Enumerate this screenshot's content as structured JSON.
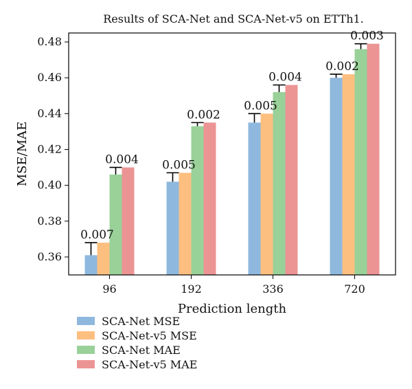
{
  "chart_data": {
    "type": "bar",
    "title": "Results of SCA-Net and SCA-Net-v5 on ETTh1.",
    "xlabel": "Prediction length",
    "ylabel": "MSE/MAE",
    "categories": [
      "96",
      "192",
      "336",
      "720"
    ],
    "ylim": [
      0.35,
      0.485
    ],
    "yticks": [
      0.36,
      0.38,
      0.4,
      0.42,
      0.44,
      0.46,
      0.48
    ],
    "ytick_labels": [
      "0.36",
      "0.38",
      "0.40",
      "0.42",
      "0.44",
      "0.46",
      "0.48"
    ],
    "grid": false,
    "legend_position": "bottom-left",
    "series": [
      {
        "name": "SCA-Net MSE",
        "color": "#8FB8DE",
        "values": [
          0.361,
          0.402,
          0.435,
          0.46
        ]
      },
      {
        "name": "SCA-Net-v5 MSE",
        "color": "#FDBF80",
        "values": [
          0.368,
          0.407,
          0.44,
          0.462
        ]
      },
      {
        "name": "SCA-Net MAE",
        "color": "#99D199",
        "values": [
          0.406,
          0.433,
          0.452,
          0.476
        ]
      },
      {
        "name": "SCA-Net-v5 MAE",
        "color": "#EC9494",
        "values": [
          0.41,
          0.435,
          0.456,
          0.479
        ]
      }
    ],
    "annotations": [
      {
        "category": "96",
        "series_pair": [
          0,
          1
        ],
        "label": "0.007"
      },
      {
        "category": "96",
        "series_pair": [
          2,
          3
        ],
        "label": "0.004"
      },
      {
        "category": "192",
        "series_pair": [
          0,
          1
        ],
        "label": "0.005"
      },
      {
        "category": "192",
        "series_pair": [
          2,
          3
        ],
        "label": "0.002"
      },
      {
        "category": "336",
        "series_pair": [
          0,
          1
        ],
        "label": "0.005"
      },
      {
        "category": "336",
        "series_pair": [
          2,
          3
        ],
        "label": "0.004"
      },
      {
        "category": "720",
        "series_pair": [
          0,
          1
        ],
        "label": "0.002"
      },
      {
        "category": "720",
        "series_pair": [
          2,
          3
        ],
        "label": "0.003"
      }
    ]
  }
}
